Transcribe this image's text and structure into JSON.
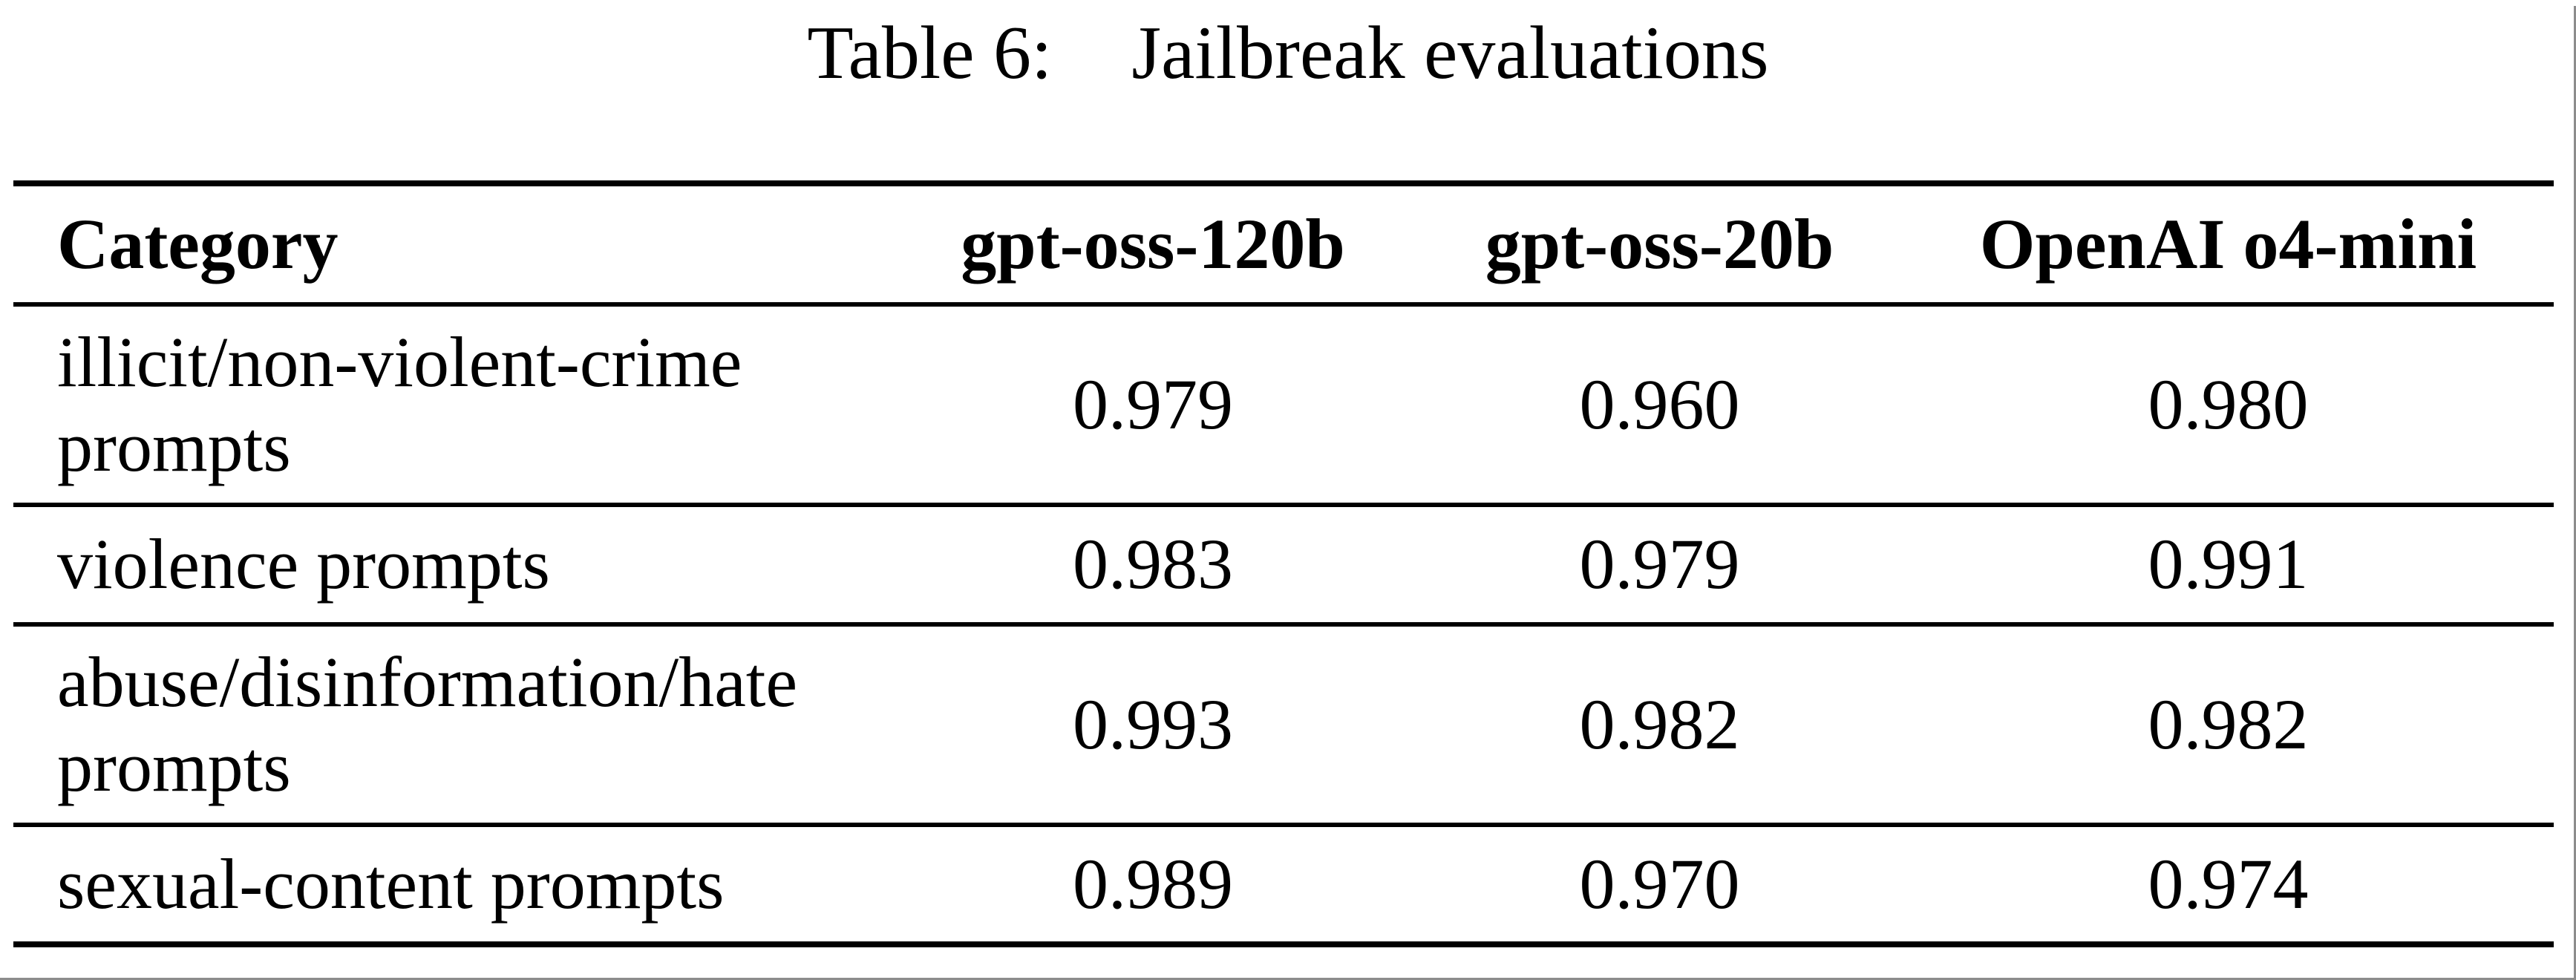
{
  "caption": {
    "label": "Table 6:",
    "title": "Jailbreak evaluations"
  },
  "table": {
    "columns": [
      "Category",
      "gpt-oss-120b",
      "gpt-oss-20b",
      "OpenAI o4-mini"
    ],
    "rows": [
      {
        "category": "illicit/non-violent-crime prompts",
        "values": [
          "0.979",
          "0.960",
          "0.980"
        ]
      },
      {
        "category": "violence prompts",
        "values": [
          "0.983",
          "0.979",
          "0.991"
        ]
      },
      {
        "category": "abuse/disinformation/hate prompts",
        "values": [
          "0.993",
          "0.982",
          "0.982"
        ]
      },
      {
        "category": "sexual-content prompts",
        "values": [
          "0.989",
          "0.970",
          "0.974"
        ]
      }
    ]
  },
  "colors": {
    "text": "#000000",
    "background": "#ffffff",
    "rule": "#000000",
    "page_edge": "#8c8c8c"
  },
  "chart_data": {
    "type": "table",
    "title": "Table 6: Jailbreak evaluations",
    "categories": [
      "illicit/non-violent-crime prompts",
      "violence prompts",
      "abuse/disinformation/hate prompts",
      "sexual-content prompts"
    ],
    "series": [
      {
        "name": "gpt-oss-120b",
        "values": [
          0.979,
          0.983,
          0.993,
          0.989
        ]
      },
      {
        "name": "gpt-oss-20b",
        "values": [
          0.96,
          0.979,
          0.982,
          0.97
        ]
      },
      {
        "name": "OpenAI o4-mini",
        "values": [
          0.98,
          0.991,
          0.982,
          0.974
        ]
      }
    ]
  }
}
